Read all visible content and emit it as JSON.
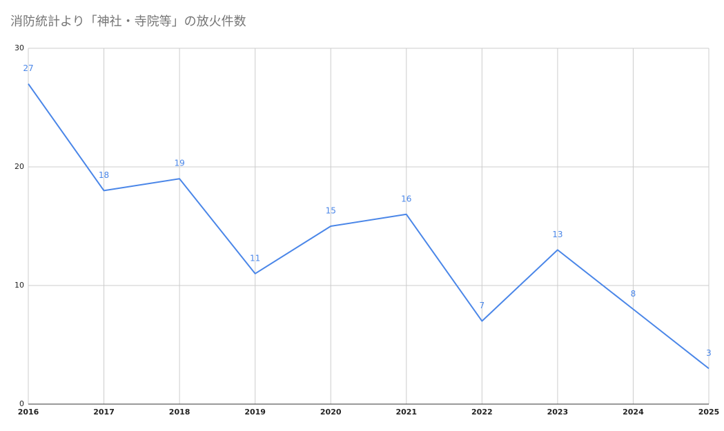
{
  "chart_data": {
    "type": "line",
    "title": "消防統計より「神社・寺院等」の放火件数",
    "x": [
      2016,
      2017,
      2018,
      2019,
      2020,
      2021,
      2022,
      2023,
      2024,
      2025
    ],
    "values": [
      27,
      18,
      19,
      11,
      15,
      16,
      7,
      13,
      8,
      3
    ],
    "color": "#4a86e8",
    "xlim": [
      2016,
      2025
    ],
    "xticks": [
      2016,
      2017,
      2018,
      2019,
      2020,
      2021,
      2022,
      2023,
      2024,
      2025
    ],
    "ylim": [
      0,
      30
    ],
    "yticks": [
      0,
      10,
      20,
      30
    ],
    "grid": true
  }
}
